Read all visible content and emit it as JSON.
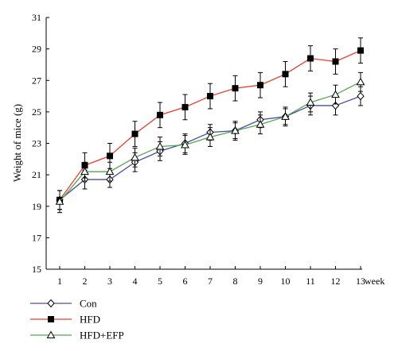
{
  "chart_data": {
    "type": "line",
    "title": "",
    "ylabel": "Weight of mice (g)",
    "xlabel": "week",
    "x": [
      1,
      2,
      3,
      4,
      5,
      6,
      7,
      8,
      9,
      10,
      11,
      12,
      13
    ],
    "xticks": [
      "1",
      "2",
      "3",
      "4",
      "5",
      "6",
      "7",
      "8",
      "9",
      "10",
      "11",
      "12",
      "13"
    ],
    "ylim": [
      15,
      31
    ],
    "yticks": [
      "15",
      "17",
      "19",
      "21",
      "23",
      "25",
      "27",
      "29",
      "31"
    ],
    "grid": false,
    "legend_position": "bottom-left",
    "series": [
      {
        "name": "Con",
        "color": "#4a4aa8",
        "marker": "diamond-open",
        "values": [
          19.4,
          20.7,
          20.7,
          21.8,
          22.5,
          23.0,
          23.7,
          23.8,
          24.5,
          24.7,
          25.4,
          25.4,
          26.0
        ],
        "errors": [
          0.6,
          0.6,
          0.5,
          0.6,
          0.6,
          0.6,
          0.5,
          0.5,
          0.5,
          0.5,
          0.6,
          0.6,
          0.6
        ]
      },
      {
        "name": "HFD",
        "color": "#ec3b2c",
        "marker": "square-filled",
        "values": [
          19.4,
          21.6,
          22.2,
          23.6,
          24.8,
          25.3,
          26.0,
          26.5,
          26.7,
          27.4,
          28.4,
          28.2,
          28.9
        ],
        "errors": [
          0.6,
          0.8,
          0.8,
          0.8,
          0.8,
          0.8,
          0.8,
          0.8,
          0.8,
          0.8,
          0.8,
          0.8,
          0.8
        ]
      },
      {
        "name": "HFD+EFP",
        "color": "#4ea84e",
        "marker": "triangle-open",
        "values": [
          19.3,
          21.2,
          21.2,
          22.1,
          22.8,
          22.9,
          23.4,
          23.8,
          24.2,
          24.7,
          25.6,
          26.1,
          26.9
        ],
        "errors": [
          0.7,
          0.6,
          0.6,
          0.6,
          0.6,
          0.6,
          0.6,
          0.6,
          0.6,
          0.6,
          0.6,
          0.6,
          0.6
        ]
      }
    ]
  }
}
